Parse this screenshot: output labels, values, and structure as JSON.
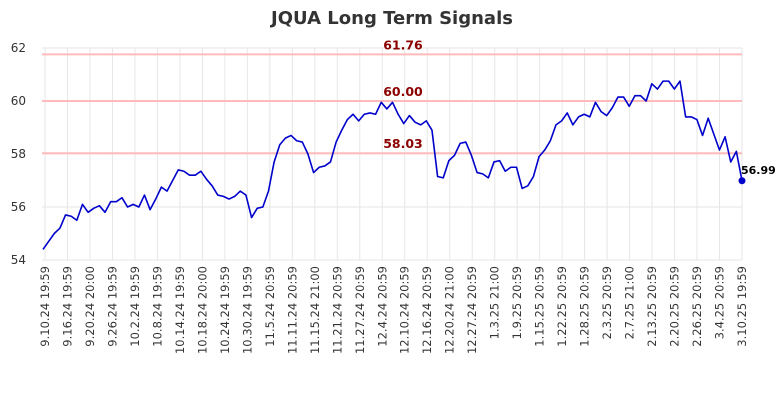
{
  "chart_data": {
    "type": "line",
    "title": "JQUA Long Term Signals",
    "xlabel": "",
    "ylabel": "",
    "ylim": [
      54,
      62
    ],
    "yticks": [
      54,
      56,
      58,
      60,
      62
    ],
    "grid": true,
    "colors": {
      "line": "#0000cc",
      "level": "#ffbbbb",
      "level_text": "#8b0000",
      "grid": "#e6e6e6"
    },
    "x_tick_labels": [
      "9.10.24 19:59",
      "9.16.24 19:59",
      "9.20.24 20:00",
      "9.26.24 19:59",
      "10.2.24 19:59",
      "10.8.24 19:59",
      "10.14.24 19:59",
      "10.18.24 20:00",
      "10.24.24 19:59",
      "10.30.24 19:59",
      "11.5.24 20:59",
      "11.11.24 20:59",
      "11.15.24 21:00",
      "11.21.24 20:59",
      "11.27.24 20:59",
      "12.4.24 20:59",
      "12.10.24 20:59",
      "12.16.24 20:59",
      "12.20.24 21:00",
      "12.27.24 20:59",
      "1.3.25 21:00",
      "1.9.25 20:59",
      "1.15.25 20:59",
      "1.22.25 20:59",
      "1.28.25 20:59",
      "2.3.25 20:59",
      "2.7.25 21:00",
      "2.13.25 20:59",
      "2.20.25 20:59",
      "2.26.25 20:59",
      "3.4.25 20:59",
      "3.10.25 19:59"
    ],
    "levels": [
      {
        "label": "61.76",
        "value": 61.76
      },
      {
        "label": "60.00",
        "value": 60.0
      },
      {
        "label": "58.03",
        "value": 58.03
      }
    ],
    "last_point_label": "56.99",
    "series": [
      {
        "values": [
          54.4,
          54.7,
          55.0,
          55.2,
          55.7,
          55.65,
          55.5,
          56.1,
          55.8,
          55.95,
          56.05,
          55.8,
          56.2,
          56.2,
          56.35,
          56.0,
          56.1,
          56.0,
          56.45,
          55.9,
          56.3,
          56.75,
          56.6,
          57.0,
          57.4,
          57.35,
          57.2,
          57.2,
          57.35,
          57.05,
          56.8,
          56.45,
          56.4,
          56.3,
          56.4,
          56.6,
          56.45,
          55.6,
          55.95,
          56.0,
          56.6,
          57.7,
          58.35,
          58.6,
          58.7,
          58.5,
          58.45,
          58.0,
          57.3,
          57.5,
          57.55,
          57.7,
          58.45,
          58.9,
          59.3,
          59.5,
          59.25,
          59.5,
          59.55,
          59.5,
          59.95,
          59.7,
          59.95,
          59.5,
          59.15,
          59.45,
          59.2,
          59.1,
          59.25,
          58.9,
          57.15,
          57.1,
          57.75,
          57.95,
          58.4,
          58.45,
          57.95,
          57.3,
          57.25,
          57.1,
          57.7,
          57.75,
          57.35,
          57.5,
          57.5,
          56.7,
          56.8,
          57.15,
          57.9,
          58.15,
          58.5,
          59.1,
          59.25,
          59.55,
          59.1,
          59.4,
          59.5,
          59.4,
          59.95,
          59.6,
          59.45,
          59.75,
          60.15,
          60.15,
          59.8,
          60.2,
          60.2,
          60.0,
          60.65,
          60.45,
          60.75,
          60.75,
          60.45,
          60.75,
          59.4,
          59.4,
          59.3,
          58.7,
          59.35,
          58.75,
          58.15,
          58.65,
          57.7,
          58.1,
          56.99
        ]
      }
    ]
  }
}
